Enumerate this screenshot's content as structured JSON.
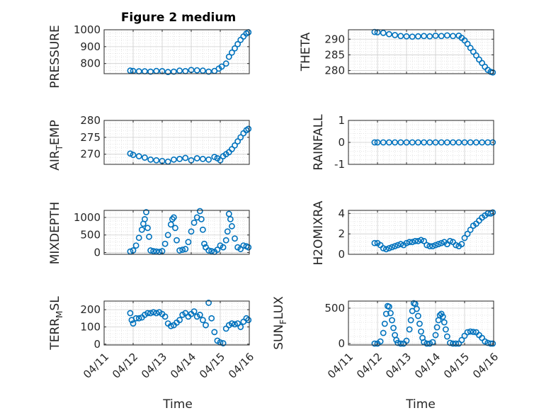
{
  "chart_data": [
    {
      "type": "scatter",
      "title": "Figure 2 medium",
      "ylabel": "PRESSURE",
      "ylim": [
        740,
        1000
      ],
      "yticks": [
        800,
        900,
        1000
      ],
      "xlim": [
        0,
        5
      ],
      "xtick_labels": [
        "04/11",
        "04/12",
        "04/13",
        "04/14",
        "04/15",
        "04/16"
      ],
      "grid": true,
      "color": "#0072BD",
      "x": [
        0.9,
        1.0,
        1.2,
        1.4,
        1.6,
        1.8,
        2.0,
        2.2,
        2.4,
        2.6,
        2.8,
        3.0,
        3.2,
        3.4,
        3.6,
        3.8,
        3.95,
        4.05,
        4.2,
        4.3,
        4.4,
        4.5,
        4.6,
        4.7,
        4.8,
        4.9,
        4.97
      ],
      "y": [
        758,
        756,
        754,
        754,
        752,
        756,
        755,
        750,
        752,
        758,
        755,
        762,
        760,
        758,
        752,
        756,
        770,
        782,
        800,
        840,
        865,
        890,
        915,
        940,
        960,
        978,
        985
      ]
    },
    {
      "type": "scatter",
      "title": "",
      "ylabel": "THETA",
      "ylim": [
        279,
        293
      ],
      "yticks": [
        280,
        285,
        290
      ],
      "xlim": [
        0,
        5
      ],
      "xtick_labels": [
        "04/11",
        "04/12",
        "04/13",
        "04/14",
        "04/15",
        "04/16"
      ],
      "grid": true,
      "color": "#0072BD",
      "x": [
        0.9,
        1.0,
        1.2,
        1.4,
        1.6,
        1.8,
        2.0,
        2.2,
        2.4,
        2.6,
        2.8,
        3.0,
        3.2,
        3.4,
        3.6,
        3.8,
        3.9,
        4.0,
        4.1,
        4.2,
        4.3,
        4.4,
        4.5,
        4.6,
        4.7,
        4.8,
        4.9,
        4.97
      ],
      "y": [
        292.3,
        292.2,
        292.0,
        291.6,
        291.3,
        291.0,
        290.9,
        290.8,
        290.9,
        291.0,
        290.9,
        291.1,
        291.0,
        291.2,
        291.0,
        291.1,
        290.4,
        289.6,
        288.5,
        287.2,
        286.0,
        284.8,
        283.5,
        282.4,
        281.2,
        280.2,
        279.6,
        279.4
      ]
    },
    {
      "type": "scatter",
      "title": "",
      "ylabel_main": "AIR",
      "ylabel_sub": "T",
      "ylabel_tail": "EMP",
      "ylim": [
        267,
        280
      ],
      "yticks": [
        270,
        275,
        280
      ],
      "xlim": [
        0,
        5
      ],
      "xtick_labels": [
        "04/11",
        "04/12",
        "04/13",
        "04/14",
        "04/15",
        "04/16"
      ],
      "grid": true,
      "color": "#0072BD",
      "x": [
        0.9,
        1.0,
        1.2,
        1.4,
        1.6,
        1.8,
        2.0,
        2.2,
        2.4,
        2.6,
        2.8,
        3.0,
        3.2,
        3.4,
        3.6,
        3.8,
        3.9,
        4.0,
        4.1,
        4.2,
        4.3,
        4.4,
        4.5,
        4.6,
        4.7,
        4.8,
        4.9,
        4.97
      ],
      "y": [
        270.2,
        269.8,
        269.4,
        269.0,
        268.4,
        268.2,
        268.0,
        267.8,
        268.4,
        268.6,
        268.9,
        268.2,
        268.8,
        268.6,
        268.4,
        269.2,
        268.8,
        268.2,
        269.4,
        270.0,
        270.6,
        271.5,
        272.6,
        273.8,
        275.0,
        276.2,
        277.1,
        277.5
      ]
    },
    {
      "type": "scatter",
      "title": "",
      "ylabel": "RAINFALL",
      "ylim": [
        -1,
        1
      ],
      "yticks": [
        -1,
        0,
        1
      ],
      "xlim": [
        0,
        5
      ],
      "xtick_labels": [
        "04/11",
        "04/12",
        "04/13",
        "04/14",
        "04/15",
        "04/16"
      ],
      "grid": true,
      "color": "#0072BD",
      "x": [
        0.9,
        1.0,
        1.2,
        1.4,
        1.6,
        1.8,
        2.0,
        2.2,
        2.4,
        2.6,
        2.8,
        3.0,
        3.2,
        3.4,
        3.6,
        3.8,
        4.0,
        4.2,
        4.4,
        4.6,
        4.8,
        4.97
      ],
      "y": [
        0,
        0,
        0,
        0,
        0,
        0,
        0,
        0,
        0,
        0,
        0,
        0,
        0,
        0,
        0,
        0,
        0,
        0,
        0,
        0,
        0,
        0
      ]
    },
    {
      "type": "scatter",
      "title": "",
      "ylabel": "MIXDEPTH",
      "ylim": [
        -50,
        1200
      ],
      "yticks": [
        0,
        500,
        1000
      ],
      "xlim": [
        0,
        5
      ],
      "xtick_labels": [
        "04/11",
        "04/12",
        "04/13",
        "04/14",
        "04/15",
        "04/16"
      ],
      "grid": true,
      "color": "#0072BD",
      "x": [
        0.9,
        1.0,
        1.1,
        1.2,
        1.3,
        1.35,
        1.4,
        1.45,
        1.5,
        1.55,
        1.6,
        1.7,
        1.8,
        1.9,
        2.0,
        2.1,
        2.2,
        2.3,
        2.35,
        2.4,
        2.45,
        2.5,
        2.6,
        2.7,
        2.8,
        2.9,
        3.0,
        3.1,
        3.2,
        3.3,
        3.35,
        3.4,
        3.45,
        3.5,
        3.6,
        3.7,
        3.8,
        3.9,
        4.0,
        4.1,
        4.2,
        4.25,
        4.3,
        4.35,
        4.4,
        4.5,
        4.6,
        4.7,
        4.8,
        4.9,
        4.97
      ],
      "y": [
        30,
        60,
        200,
        420,
        650,
        820,
        950,
        1150,
        700,
        450,
        60,
        40,
        30,
        20,
        40,
        250,
        500,
        800,
        950,
        1000,
        700,
        350,
        60,
        80,
        100,
        300,
        600,
        850,
        1000,
        1180,
        950,
        650,
        250,
        150,
        60,
        40,
        20,
        80,
        200,
        150,
        350,
        600,
        1100,
        950,
        750,
        400,
        150,
        100,
        200,
        180,
        150
      ]
    },
    {
      "type": "scatter",
      "title": "",
      "ylabel": "H2OMIXRA",
      "ylim": [
        0,
        4.3
      ],
      "yticks": [
        0,
        2,
        4
      ],
      "xlim": [
        0,
        5
      ],
      "xtick_labels": [
        "04/11",
        "04/12",
        "04/13",
        "04/14",
        "04/15",
        "04/16"
      ],
      "grid": true,
      "color": "#0072BD",
      "x": [
        0.9,
        1.0,
        1.1,
        1.2,
        1.3,
        1.4,
        1.5,
        1.6,
        1.7,
        1.8,
        1.9,
        2.0,
        2.1,
        2.2,
        2.3,
        2.4,
        2.5,
        2.6,
        2.7,
        2.8,
        2.9,
        3.0,
        3.1,
        3.2,
        3.3,
        3.4,
        3.5,
        3.6,
        3.7,
        3.8,
        3.9,
        4.0,
        4.1,
        4.2,
        4.3,
        4.4,
        4.5,
        4.6,
        4.7,
        4.8,
        4.9,
        4.97
      ],
      "y": [
        1.1,
        1.1,
        0.9,
        0.6,
        0.5,
        0.6,
        0.7,
        0.8,
        0.9,
        1.0,
        0.9,
        1.1,
        1.2,
        1.2,
        1.3,
        1.3,
        1.4,
        1.3,
        0.9,
        0.8,
        0.8,
        0.9,
        1.0,
        1.1,
        1.2,
        1.0,
        1.3,
        1.2,
        0.9,
        0.8,
        1.0,
        1.6,
        2.0,
        2.4,
        2.8,
        3.0,
        3.3,
        3.6,
        3.8,
        4.0,
        4.0,
        4.1
      ]
    },
    {
      "type": "scatter",
      "title": "",
      "ylabel_main": "TERR",
      "ylabel_sub": "M",
      "ylabel_tail": "SL",
      "ylim": [
        -5,
        250
      ],
      "yticks": [
        0,
        100,
        200
      ],
      "xlim": [
        0,
        5
      ],
      "xtick_labels": [
        "04/11",
        "04/12",
        "04/13",
        "04/14",
        "04/15",
        "04/16"
      ],
      "grid": true,
      "color": "#0072BD",
      "x": [
        0.9,
        0.95,
        1.0,
        1.1,
        1.2,
        1.3,
        1.4,
        1.5,
        1.6,
        1.7,
        1.8,
        1.9,
        2.0,
        2.1,
        2.2,
        2.3,
        2.4,
        2.5,
        2.6,
        2.7,
        2.8,
        2.9,
        3.0,
        3.1,
        3.2,
        3.3,
        3.4,
        3.5,
        3.6,
        3.7,
        3.8,
        3.9,
        4.0,
        4.1,
        4.2,
        4.3,
        4.4,
        4.5,
        4.6,
        4.7,
        4.8,
        4.9,
        4.97
      ],
      "y": [
        180,
        140,
        120,
        150,
        150,
        155,
        170,
        180,
        180,
        185,
        180,
        185,
        175,
        160,
        120,
        105,
        110,
        125,
        140,
        170,
        180,
        160,
        175,
        190,
        160,
        170,
        140,
        110,
        240,
        150,
        70,
        20,
        10,
        5,
        90,
        110,
        120,
        115,
        120,
        100,
        130,
        150,
        140
      ]
    },
    {
      "type": "scatter",
      "title": "",
      "ylabel_main": "SUN",
      "ylabel_sub": "F",
      "ylabel_tail": "LUX",
      "ylim": [
        -20,
        600
      ],
      "yticks": [
        0,
        500
      ],
      "xlim": [
        0,
        5
      ],
      "xtick_labels": [
        "04/11",
        "04/12",
        "04/13",
        "04/14",
        "04/15",
        "04/16"
      ],
      "grid": true,
      "color": "#0072BD",
      "x": [
        0.9,
        1.0,
        1.1,
        1.2,
        1.25,
        1.3,
        1.35,
        1.4,
        1.45,
        1.5,
        1.55,
        1.6,
        1.65,
        1.7,
        1.8,
        1.9,
        2.0,
        2.1,
        2.15,
        2.2,
        2.25,
        2.3,
        2.35,
        2.4,
        2.45,
        2.5,
        2.55,
        2.6,
        2.7,
        2.8,
        2.9,
        3.0,
        3.05,
        3.1,
        3.15,
        3.2,
        3.25,
        3.3,
        3.35,
        3.4,
        3.5,
        3.6,
        3.7,
        3.8,
        3.9,
        4.0,
        4.1,
        4.2,
        4.3,
        4.4,
        4.5,
        4.6,
        4.7,
        4.8,
        4.9,
        4.97
      ],
      "y": [
        0,
        0,
        30,
        150,
        280,
        420,
        530,
        520,
        430,
        330,
        220,
        120,
        50,
        10,
        0,
        0,
        40,
        200,
        330,
        460,
        570,
        560,
        490,
        390,
        280,
        170,
        80,
        20,
        0,
        0,
        20,
        120,
        230,
        330,
        400,
        420,
        380,
        300,
        200,
        100,
        10,
        0,
        0,
        0,
        50,
        110,
        160,
        170,
        165,
        160,
        120,
        80,
        30,
        10,
        0,
        0
      ]
    }
  ],
  "common": {
    "xlabel": "Time"
  }
}
